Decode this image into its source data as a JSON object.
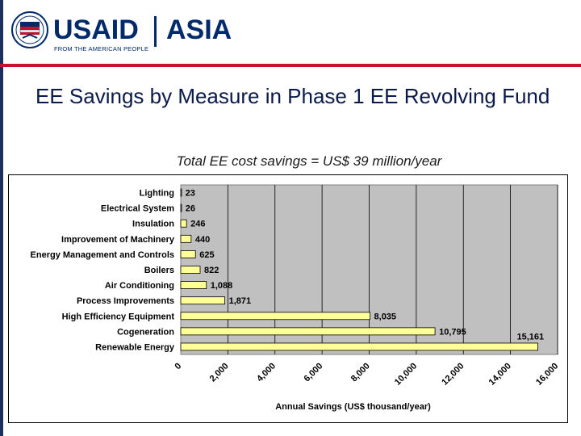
{
  "header": {
    "brand": "USAID",
    "region": "ASIA",
    "tagline": "FROM THE AMERICAN PEOPLE"
  },
  "slide": {
    "title": "EE Savings by Measure in Phase 1 EE Revolving Fund",
    "subtitle": "Total EE cost savings = US$ 39 million/year"
  },
  "colors": {
    "brand_navy": "#002a6c",
    "brand_red": "#c8102e",
    "plot_background": "#c0c0c0",
    "bar_fill": "#ffff99"
  },
  "chart_data": {
    "type": "bar",
    "orientation": "horizontal",
    "categories": [
      "Lighting",
      "Electrical System",
      "Insulation",
      "Improvement of Machinery",
      "Energy Management and Controls",
      "Boilers",
      "Air Conditioning",
      "Process Improvements",
      "High Efficiency Equipment",
      "Cogeneration",
      "Renewable Energy"
    ],
    "values": [
      23,
      26,
      246,
      440,
      625,
      822,
      1088,
      1871,
      8035,
      10795,
      15161
    ],
    "value_labels": [
      "23",
      "26",
      "246",
      "440",
      "625",
      "822",
      "1,088",
      "1,871",
      "8,035",
      "10,795",
      "15,161"
    ],
    "xlabel": "Annual Savings (US$ thousand/year)",
    "ylabel": "",
    "xlim": [
      0,
      16000
    ],
    "x_ticks": [
      0,
      2000,
      4000,
      6000,
      8000,
      10000,
      12000,
      14000,
      16000
    ],
    "x_tick_labels": [
      "0",
      "2,000",
      "4,000",
      "6,000",
      "8,000",
      "10,000",
      "12,000",
      "14,000",
      "16,000"
    ],
    "grid": true,
    "legend": "none"
  }
}
